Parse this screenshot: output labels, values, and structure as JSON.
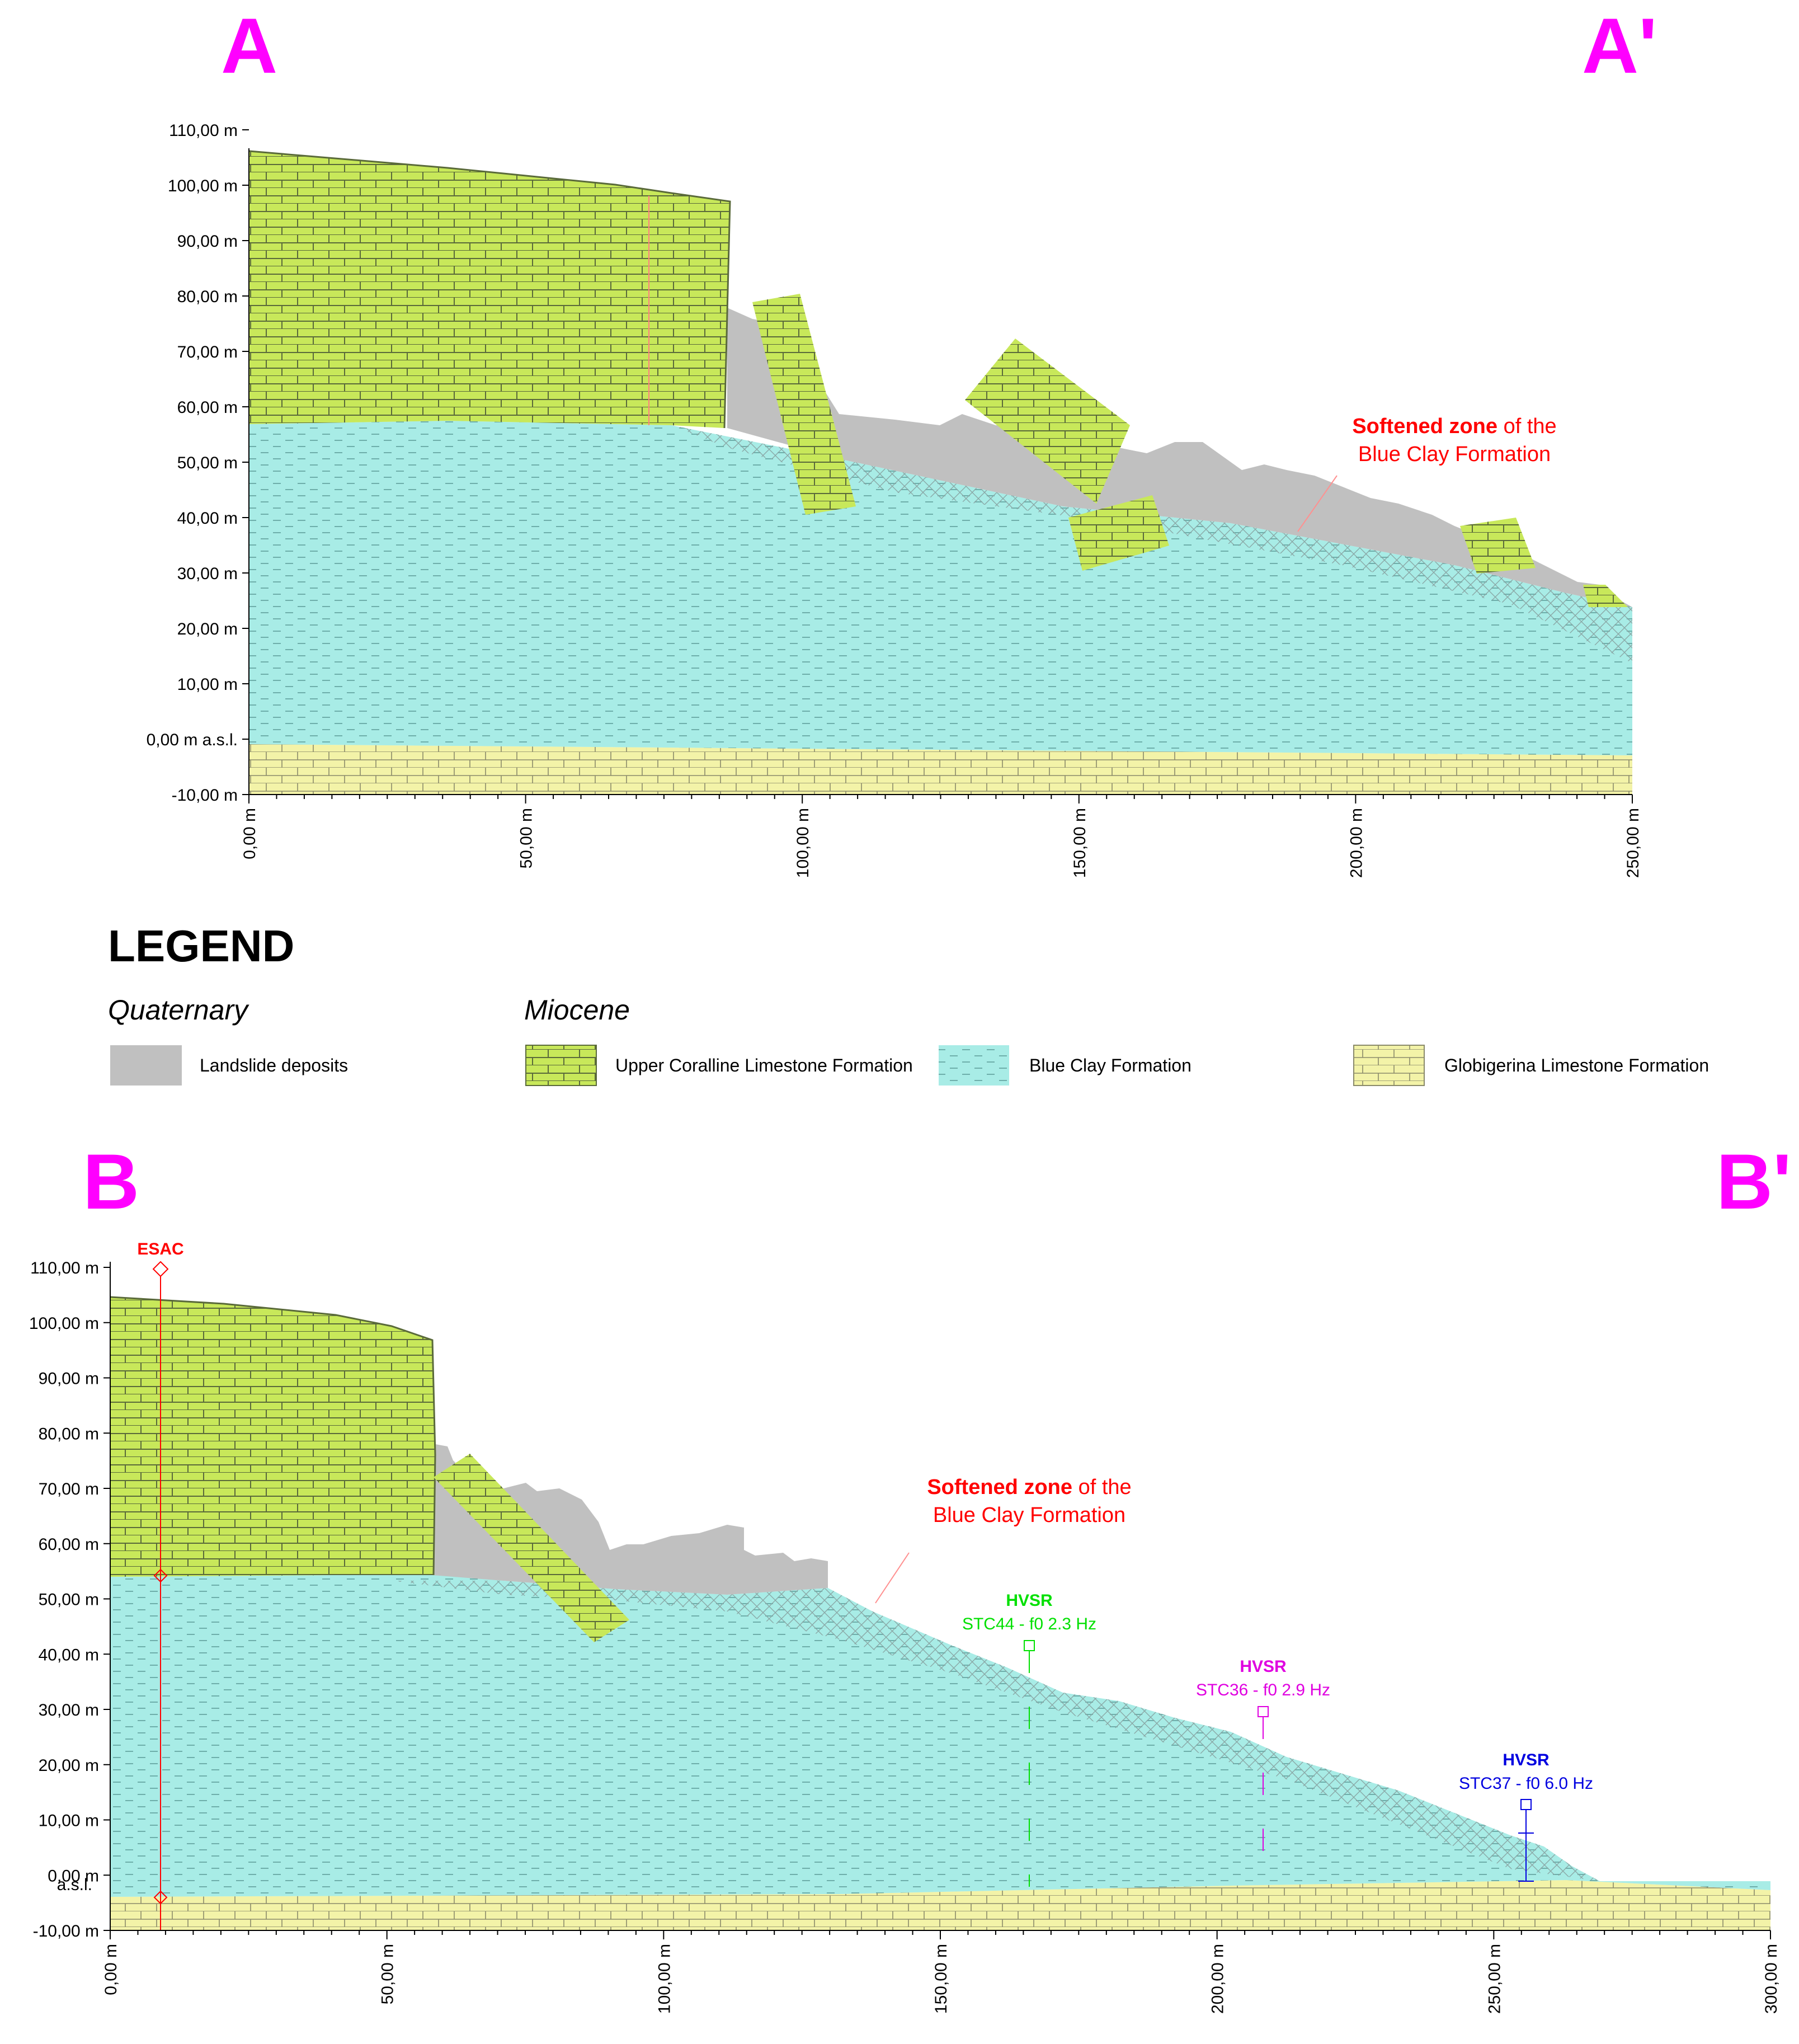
{
  "sections": [
    {
      "start_label": "A",
      "end_label": "A'",
      "y_ticks": [
        "110,00 m",
        "100,00 m",
        "90,00 m",
        "80,00 m",
        "70,00 m",
        "60,00 m",
        "50,00 m",
        "40,00 m",
        "30,00 m",
        "20,00 m",
        "10,00 m",
        "0,00 m a.s.l.",
        "-10,00 m"
      ],
      "x_ticks": [
        "0,00 m",
        "50,00 m",
        "100,00 m",
        "150,00 m",
        "200,00 m",
        "250,00 m"
      ],
      "annotation_bold": "Softened zone",
      "annotation_rest": " of the",
      "annotation_line2": "Blue Clay Formation"
    },
    {
      "start_label": "B",
      "end_label": "B'",
      "y_ticks": [
        "110,00 m",
        "100,00 m",
        "90,00 m",
        "80,00 m",
        "70,00 m",
        "60,00 m",
        "50,00 m",
        "40,00 m",
        "30,00 m",
        "20,00 m",
        "10,00 m",
        "0,00 m",
        "-10,00 m"
      ],
      "y_zero_suffix": "a.s.l.",
      "x_ticks": [
        "0,00 m",
        "50,00 m",
        "100,00 m",
        "150,00 m",
        "200,00 m",
        "250,00 m",
        "300,00 m"
      ],
      "annotation_bold": "Softened zone",
      "annotation_rest": " of the",
      "annotation_line2": "Blue Clay Formation",
      "esac_label": "ESAC",
      "hvsr": [
        {
          "title": "HVSR",
          "label": "STC44 - f0 2.3 Hz",
          "color": "#00e000"
        },
        {
          "title": "HVSR",
          "label": "STC36 - f0 2.9 Hz",
          "color": "#e000e0"
        },
        {
          "title": "HVSR",
          "label": "STC37 - f0 6.0 Hz",
          "color": "#0000e0"
        }
      ]
    }
  ],
  "legend": {
    "title": "LEGEND",
    "group1": "Quaternary",
    "group2": "Miocene",
    "items": [
      {
        "label": "Landslide deposits",
        "color": "#c0c0c0"
      },
      {
        "label": "Upper Coralline Limestone Formation",
        "color": "#c8e85a"
      },
      {
        "label": "Blue Clay Formation",
        "color": "#a8ece6"
      },
      {
        "label": "Globigerina Limestone Formation",
        "color": "#f3f3a8"
      }
    ]
  },
  "colors": {
    "magenta": "#ff00ff",
    "annotation": "#ff0000"
  }
}
